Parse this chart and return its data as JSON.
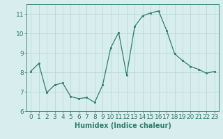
{
  "x": [
    0,
    1,
    2,
    3,
    4,
    5,
    6,
    7,
    8,
    9,
    10,
    11,
    12,
    13,
    14,
    15,
    16,
    17,
    18,
    19,
    20,
    21,
    22,
    23
  ],
  "y": [
    8.05,
    8.45,
    6.95,
    7.35,
    7.45,
    6.75,
    6.65,
    6.7,
    6.45,
    7.35,
    9.25,
    10.05,
    7.85,
    10.35,
    10.9,
    11.05,
    11.15,
    10.15,
    8.95,
    8.6,
    8.3,
    8.15,
    7.95,
    8.05
  ],
  "line_color": "#2e7d6e",
  "marker_color": "#2e7d6e",
  "bg_color": "#d8eeee",
  "grid_color": "#b8d8d8",
  "xlabel": "Humidex (Indice chaleur)",
  "xlim": [
    -0.5,
    23.5
  ],
  "ylim": [
    6.0,
    11.5
  ],
  "yticks": [
    6,
    7,
    8,
    9,
    10,
    11
  ],
  "xticks": [
    0,
    1,
    2,
    3,
    4,
    5,
    6,
    7,
    8,
    9,
    10,
    11,
    12,
    13,
    14,
    15,
    16,
    17,
    18,
    19,
    20,
    21,
    22,
    23
  ],
  "tick_color": "#2e7d6e",
  "label_fontsize": 6.5,
  "axis_fontsize": 7.0
}
